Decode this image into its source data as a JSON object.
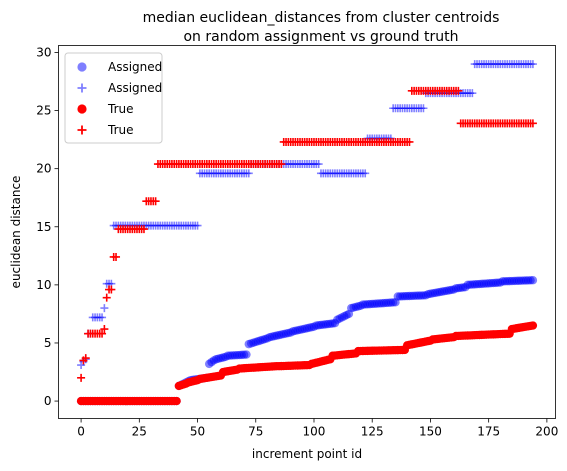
{
  "chart_data": {
    "type": "scatter",
    "title": [
      "median euclidean_distances from cluster centroids",
      "on random assignment vs ground truth"
    ],
    "xlabel": "increment point id",
    "ylabel": "euclidean distance",
    "xlim": [
      -9.7,
      203.7
    ],
    "ylim": [
      -1.5,
      30.6
    ],
    "xticks": [
      0,
      25,
      50,
      75,
      100,
      125,
      150,
      175,
      200
    ],
    "yticks": [
      0,
      5,
      10,
      15,
      20,
      25,
      30
    ],
    "grid": false,
    "legend_position": "top-left",
    "n_points": 195,
    "series": [
      {
        "name": "Assigned",
        "marker": "circle",
        "color": "#0000ff",
        "alpha": 0.5,
        "segments": [
          [
            0,
            41,
            0,
            0
          ],
          [
            42,
            46,
            1.3,
            1.7
          ],
          [
            47,
            54,
            1.8,
            2.0
          ],
          [
            55,
            57,
            3.2,
            3.5
          ],
          [
            58,
            62,
            3.6,
            3.8
          ],
          [
            63,
            71,
            3.9,
            4.0
          ],
          [
            72,
            80,
            4.9,
            5.4
          ],
          [
            81,
            90,
            5.5,
            5.9
          ],
          [
            91,
            100,
            6.0,
            6.4
          ],
          [
            101,
            109,
            6.5,
            6.7
          ],
          [
            110,
            115,
            7.0,
            7.5
          ],
          [
            116,
            120,
            8.0,
            8.2
          ],
          [
            121,
            135,
            8.3,
            8.5
          ],
          [
            136,
            148,
            9.0,
            9.1
          ],
          [
            149,
            160,
            9.2,
            9.6
          ],
          [
            161,
            165,
            9.7,
            9.8
          ],
          [
            166,
            180,
            10.0,
            10.2
          ],
          [
            181,
            194,
            10.3,
            10.4
          ]
        ]
      },
      {
        "name": "Assigned",
        "marker": "plus",
        "color": "#0000ff",
        "alpha": 0.5,
        "segments": [
          [
            0,
            0,
            3.1,
            3.1
          ],
          [
            1,
            1,
            3.4,
            3.4
          ],
          [
            2,
            2,
            3.6,
            3.6
          ],
          [
            3,
            4,
            5.8,
            5.8
          ],
          [
            5,
            9,
            7.2,
            7.2
          ],
          [
            10,
            10,
            8.0,
            8.0
          ],
          [
            11,
            12,
            10.1,
            10.1
          ],
          [
            13,
            13,
            10.1,
            10.1
          ],
          [
            14,
            50,
            15.1,
            15.1
          ],
          [
            51,
            72,
            19.6,
            19.6
          ],
          [
            73,
            87,
            20.4,
            20.4
          ],
          [
            88,
            102,
            20.4,
            20.4
          ],
          [
            103,
            122,
            19.6,
            19.6
          ],
          [
            123,
            133,
            22.6,
            22.6
          ],
          [
            134,
            147,
            25.2,
            25.2
          ],
          [
            148,
            168,
            26.5,
            26.5
          ],
          [
            169,
            194,
            29.0,
            29.0
          ]
        ]
      },
      {
        "name": "True",
        "marker": "circle",
        "color": "#ff0000",
        "alpha": 1,
        "segments": [
          [
            0,
            41,
            0,
            0
          ],
          [
            42,
            45,
            1.3,
            1.5
          ],
          [
            46,
            50,
            1.6,
            1.8
          ],
          [
            51,
            60,
            1.9,
            2.2
          ],
          [
            61,
            67,
            2.5,
            2.7
          ],
          [
            68,
            84,
            2.8,
            3.0
          ],
          [
            85,
            98,
            3.0,
            3.1
          ],
          [
            99,
            107,
            3.2,
            3.6
          ],
          [
            108,
            118,
            3.9,
            4.1
          ],
          [
            119,
            139,
            4.3,
            4.4
          ],
          [
            140,
            150,
            4.8,
            5.2
          ],
          [
            151,
            160,
            5.3,
            5.5
          ],
          [
            161,
            184,
            5.6,
            5.8
          ],
          [
            185,
            194,
            6.2,
            6.5
          ]
        ]
      },
      {
        "name": "True",
        "marker": "plus",
        "color": "#ff0000",
        "alpha": 1,
        "segments": [
          [
            0,
            0,
            2.0,
            2.0
          ],
          [
            1,
            1,
            3.5,
            3.5
          ],
          [
            2,
            2,
            3.7,
            3.7
          ],
          [
            3,
            7,
            5.8,
            5.8
          ],
          [
            8,
            9,
            5.8,
            5.8
          ],
          [
            10,
            10,
            6.2,
            6.2
          ],
          [
            11,
            11,
            8.9,
            8.9
          ],
          [
            12,
            12,
            9.6,
            9.6
          ],
          [
            13,
            13,
            9.6,
            9.6
          ],
          [
            14,
            15,
            12.4,
            12.4
          ],
          [
            16,
            27,
            14.8,
            14.8
          ],
          [
            28,
            32,
            17.2,
            17.2
          ],
          [
            33,
            86,
            20.4,
            20.4
          ],
          [
            87,
            141,
            22.3,
            22.3
          ],
          [
            142,
            162,
            26.7,
            26.7
          ],
          [
            163,
            194,
            23.9,
            23.9
          ]
        ]
      }
    ]
  }
}
